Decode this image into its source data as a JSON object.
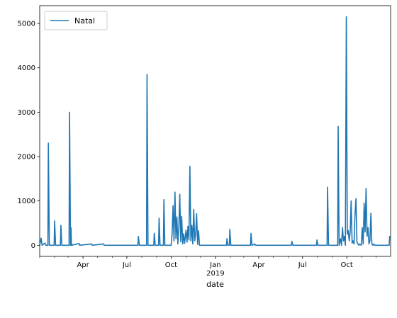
{
  "chart_data": {
    "type": "line",
    "xlabel": "date",
    "ylabel": "",
    "ylim": [
      -250,
      5400
    ],
    "xlim": [
      "2018-01-01",
      "2019-12-31"
    ],
    "yticks": [
      0,
      1000,
      2000,
      3000,
      4000,
      5000
    ],
    "xticks": [
      {
        "date": "2018-04-01",
        "label": "Apr",
        "sub": ""
      },
      {
        "date": "2018-07-01",
        "label": "Jul",
        "sub": ""
      },
      {
        "date": "2018-10-01",
        "label": "Oct",
        "sub": ""
      },
      {
        "date": "2019-01-01",
        "label": "Jan",
        "sub": "2019"
      },
      {
        "date": "2019-04-01",
        "label": "Apr",
        "sub": ""
      },
      {
        "date": "2019-07-01",
        "label": "Jul",
        "sub": ""
      },
      {
        "date": "2019-10-01",
        "label": "Oct",
        "sub": ""
      }
    ],
    "legend": {
      "placement": "upper-left"
    },
    "series": [
      {
        "name": "Natal",
        "color": "#1f77b4",
        "points": [
          [
            "2018-01-01",
            0
          ],
          [
            "2018-01-04",
            160
          ],
          [
            "2018-01-06",
            0
          ],
          [
            "2018-01-12",
            50
          ],
          [
            "2018-01-14",
            0
          ],
          [
            "2018-01-18",
            0
          ],
          [
            "2018-01-19",
            2300
          ],
          [
            "2018-01-21",
            0
          ],
          [
            "2018-01-31",
            0
          ],
          [
            "2018-02-01",
            550
          ],
          [
            "2018-02-03",
            0
          ],
          [
            "2018-02-13",
            0
          ],
          [
            "2018-02-14",
            450
          ],
          [
            "2018-02-16",
            0
          ],
          [
            "2018-03-03",
            0
          ],
          [
            "2018-03-04",
            3000
          ],
          [
            "2018-03-06",
            0
          ],
          [
            "2018-03-07",
            400
          ],
          [
            "2018-03-08",
            0
          ],
          [
            "2018-03-24",
            40
          ],
          [
            "2018-03-25",
            0
          ],
          [
            "2018-04-19",
            30
          ],
          [
            "2018-04-20",
            0
          ],
          [
            "2018-05-14",
            30
          ],
          [
            "2018-05-15",
            0
          ],
          [
            "2018-07-24",
            0
          ],
          [
            "2018-07-25",
            200
          ],
          [
            "2018-07-27",
            0
          ],
          [
            "2018-08-11",
            0
          ],
          [
            "2018-08-12",
            3850
          ],
          [
            "2018-08-14",
            0
          ],
          [
            "2018-08-26",
            0
          ],
          [
            "2018-08-27",
            270
          ],
          [
            "2018-08-29",
            0
          ],
          [
            "2018-09-05",
            0
          ],
          [
            "2018-09-06",
            610
          ],
          [
            "2018-09-08",
            0
          ],
          [
            "2018-09-15",
            0
          ],
          [
            "2018-09-16",
            1030
          ],
          [
            "2018-09-18",
            0
          ],
          [
            "2018-10-01",
            0
          ],
          [
            "2018-10-03",
            250
          ],
          [
            "2018-10-05",
            890
          ],
          [
            "2018-10-07",
            100
          ],
          [
            "2018-10-09",
            1200
          ],
          [
            "2018-10-11",
            150
          ],
          [
            "2018-10-13",
            640
          ],
          [
            "2018-10-15",
            30
          ],
          [
            "2018-10-17",
            400
          ],
          [
            "2018-10-19",
            1150
          ],
          [
            "2018-10-21",
            80
          ],
          [
            "2018-10-23",
            650
          ],
          [
            "2018-10-25",
            30
          ],
          [
            "2018-10-27",
            260
          ],
          [
            "2018-10-29",
            40
          ],
          [
            "2018-11-01",
            340
          ],
          [
            "2018-11-03",
            70
          ],
          [
            "2018-11-05",
            430
          ],
          [
            "2018-11-07",
            120
          ],
          [
            "2018-11-09",
            1780
          ],
          [
            "2018-11-11",
            100
          ],
          [
            "2018-11-13",
            450
          ],
          [
            "2018-11-15",
            30
          ],
          [
            "2018-11-17",
            810
          ],
          [
            "2018-11-19",
            100
          ],
          [
            "2018-11-21",
            250
          ],
          [
            "2018-11-23",
            710
          ],
          [
            "2018-11-25",
            20
          ],
          [
            "2018-11-27",
            330
          ],
          [
            "2018-11-29",
            0
          ],
          [
            "2019-01-24",
            0
          ],
          [
            "2019-01-25",
            150
          ],
          [
            "2019-01-27",
            0
          ],
          [
            "2019-01-30",
            0
          ],
          [
            "2019-01-31",
            360
          ],
          [
            "2019-02-02",
            0
          ],
          [
            "2019-03-15",
            0
          ],
          [
            "2019-03-16",
            270
          ],
          [
            "2019-03-18",
            0
          ],
          [
            "2019-03-24",
            30
          ],
          [
            "2019-03-25",
            0
          ],
          [
            "2019-06-08",
            0
          ],
          [
            "2019-06-09",
            90
          ],
          [
            "2019-06-11",
            0
          ],
          [
            "2019-07-30",
            0
          ],
          [
            "2019-07-31",
            120
          ],
          [
            "2019-08-02",
            0
          ],
          [
            "2019-08-21",
            0
          ],
          [
            "2019-08-22",
            1310
          ],
          [
            "2019-08-24",
            0
          ],
          [
            "2019-09-12",
            0
          ],
          [
            "2019-09-13",
            2680
          ],
          [
            "2019-09-15",
            0
          ],
          [
            "2019-09-18",
            150
          ],
          [
            "2019-09-20",
            0
          ],
          [
            "2019-09-22",
            400
          ],
          [
            "2019-09-24",
            100
          ],
          [
            "2019-09-26",
            200
          ],
          [
            "2019-09-28",
            0
          ],
          [
            "2019-09-30",
            5150
          ],
          [
            "2019-10-02",
            250
          ],
          [
            "2019-10-04",
            330
          ],
          [
            "2019-10-06",
            100
          ],
          [
            "2019-10-08",
            300
          ],
          [
            "2019-10-10",
            1000
          ],
          [
            "2019-10-12",
            50
          ],
          [
            "2019-10-14",
            100
          ],
          [
            "2019-10-16",
            30
          ],
          [
            "2019-10-18",
            700
          ],
          [
            "2019-10-20",
            1050
          ],
          [
            "2019-10-22",
            80
          ],
          [
            "2019-10-24",
            30
          ],
          [
            "2019-10-26",
            0
          ],
          [
            "2019-10-28",
            30
          ],
          [
            "2019-10-31",
            0
          ],
          [
            "2019-11-02",
            400
          ],
          [
            "2019-11-04",
            30
          ],
          [
            "2019-11-06",
            950
          ],
          [
            "2019-11-08",
            300
          ],
          [
            "2019-11-10",
            1280
          ],
          [
            "2019-11-12",
            200
          ],
          [
            "2019-11-14",
            400
          ],
          [
            "2019-11-16",
            30
          ],
          [
            "2019-11-18",
            100
          ],
          [
            "2019-11-20",
            720
          ],
          [
            "2019-11-22",
            30
          ],
          [
            "2019-11-24",
            0
          ],
          [
            "2019-11-26",
            30
          ],
          [
            "2019-11-28",
            0
          ],
          [
            "2019-12-28",
            0
          ],
          [
            "2019-12-29",
            200
          ],
          [
            "2019-12-31",
            200
          ]
        ]
      }
    ]
  }
}
